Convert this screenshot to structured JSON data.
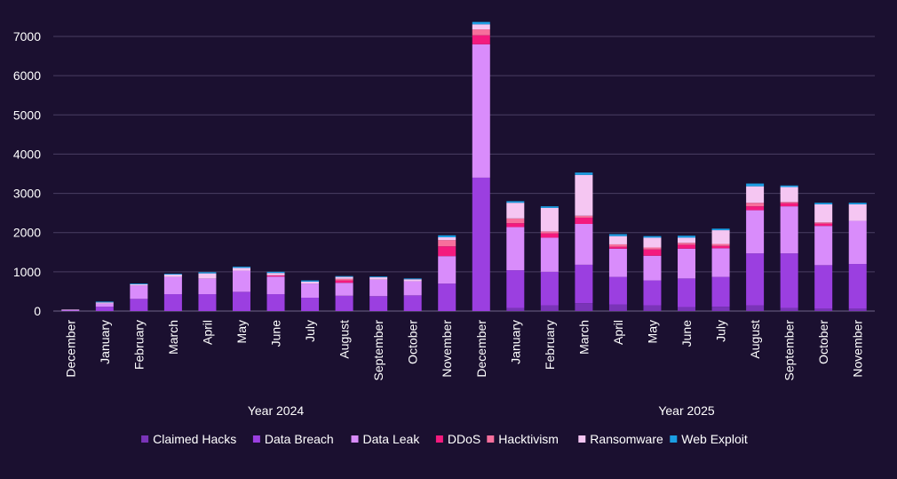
{
  "colors": {
    "background": "#1b1030",
    "gridline": "#4a3e62",
    "axis_text": "#ffffff"
  },
  "chart_data": {
    "type": "bar",
    "stacked": true,
    "title": "",
    "xlabel": "",
    "ylabel": "",
    "ylim": [
      0,
      7000
    ],
    "yticks": [
      0,
      1000,
      2000,
      3000,
      4000,
      5000,
      6000,
      7000
    ],
    "grid": true,
    "legend_position": "bottom",
    "categories": [
      "December",
      "January",
      "February",
      "March",
      "April",
      "May",
      "June",
      "July",
      "August",
      "September",
      "October",
      "November",
      "December",
      "January",
      "February",
      "March",
      "April",
      "May",
      "June",
      "July",
      "August",
      "September",
      "October",
      "November"
    ],
    "groups": [
      {
        "label": "Year 2024",
        "start": 1,
        "end": 11
      },
      {
        "label": "Year 2025",
        "start": 13,
        "end": 23
      }
    ],
    "series": [
      {
        "name": "Claimed Hacks",
        "color": "#7a34b8",
        "values": [
          0,
          0,
          0,
          0,
          0,
          0,
          0,
          0,
          0,
          0,
          0,
          0,
          0,
          80,
          140,
          200,
          170,
          140,
          100,
          110,
          140,
          80,
          60,
          60
        ]
      },
      {
        "name": "Data Breach",
        "color": "#9b3fe0",
        "values": [
          10,
          110,
          310,
          430,
          430,
          490,
          430,
          340,
          390,
          380,
          400,
          700,
          3400,
          960,
          860,
          980,
          700,
          640,
          730,
          760,
          1330,
          1390,
          1110,
          1140
        ]
      },
      {
        "name": "Data Leak",
        "color": "#d98cfb",
        "values": [
          20,
          80,
          340,
          440,
          400,
          540,
          450,
          360,
          330,
          420,
          360,
          700,
          3400,
          1100,
          870,
          1040,
          720,
          630,
          760,
          730,
          1100,
          1200,
          1000,
          1100
        ]
      },
      {
        "name": "DDoS",
        "color": "#f41a7e",
        "values": [
          0,
          0,
          0,
          0,
          0,
          0,
          30,
          0,
          60,
          0,
          0,
          250,
          230,
          100,
          110,
          160,
          50,
          160,
          100,
          60,
          100,
          80,
          60,
          0
        ]
      },
      {
        "name": "Hacktivism",
        "color": "#f76f9c",
        "values": [
          0,
          0,
          0,
          0,
          0,
          0,
          0,
          0,
          40,
          0,
          0,
          160,
          150,
          120,
          50,
          50,
          60,
          50,
          50,
          50,
          90,
          30,
          30,
          0
        ]
      },
      {
        "name": "Ransomware",
        "color": "#f5c6f2",
        "values": [
          10,
          30,
          30,
          60,
          130,
          70,
          60,
          50,
          50,
          60,
          50,
          70,
          130,
          400,
          600,
          1040,
          210,
          250,
          130,
          350,
          420,
          380,
          460,
          420
        ]
      },
      {
        "name": "Web Exploit",
        "color": "#1b9ee3",
        "values": [
          0,
          20,
          20,
          20,
          30,
          30,
          30,
          30,
          20,
          20,
          20,
          50,
          60,
          40,
          40,
          60,
          50,
          40,
          50,
          40,
          70,
          40,
          40,
          40
        ]
      }
    ]
  }
}
